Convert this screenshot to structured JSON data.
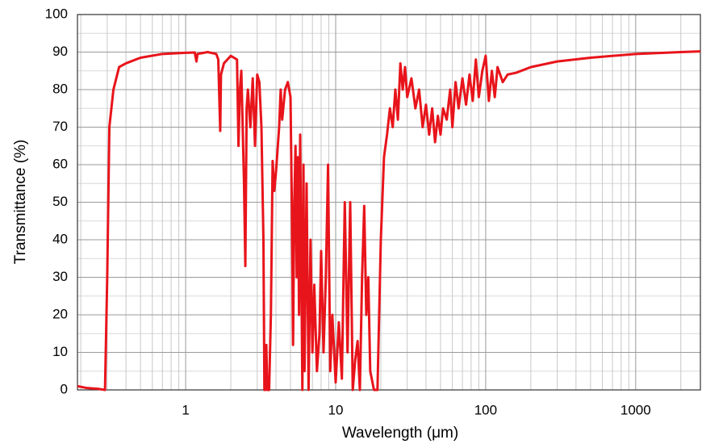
{
  "chart_data": {
    "type": "line",
    "xlabel": "Wavelength (μm)",
    "ylabel": "Transmittance (%)",
    "xscale": "log",
    "xlim": [
      0.19,
      2700
    ],
    "ylim": [
      0,
      100
    ],
    "xticks": [
      1,
      10,
      100,
      1000
    ],
    "xminorticks": [
      0.2,
      0.3,
      0.4,
      0.5,
      0.6,
      0.7,
      0.8,
      0.9,
      2,
      3,
      4,
      5,
      6,
      7,
      8,
      9,
      20,
      30,
      40,
      50,
      60,
      70,
      80,
      90,
      200,
      300,
      400,
      500,
      600,
      700,
      800,
      900,
      2000
    ],
    "yticks": [
      0,
      10,
      20,
      30,
      40,
      50,
      60,
      70,
      80,
      90,
      100
    ],
    "yminorticks": [
      5,
      15,
      25,
      35,
      45,
      55,
      65,
      75,
      85,
      95
    ],
    "grid": true,
    "color": "#e8141b",
    "x": [
      0.19,
      0.22,
      0.26,
      0.29,
      0.3,
      0.31,
      0.33,
      0.36,
      0.4,
      0.5,
      0.7,
      1.0,
      1.15,
      1.18,
      1.2,
      1.4,
      1.6,
      1.65,
      1.7,
      1.72,
      1.8,
      2.0,
      2.2,
      2.25,
      2.3,
      2.35,
      2.4,
      2.45,
      2.5,
      2.55,
      2.6,
      2.7,
      2.8,
      2.9,
      3.0,
      3.1,
      3.2,
      3.3,
      3.35,
      3.4,
      3.45,
      3.5,
      3.6,
      3.7,
      3.8,
      3.9,
      4.0,
      4.2,
      4.3,
      4.4,
      4.6,
      4.8,
      5.0,
      5.1,
      5.2,
      5.3,
      5.4,
      5.5,
      5.6,
      5.7,
      5.8,
      6.0,
      6.1,
      6.2,
      6.4,
      6.6,
      6.8,
      7.0,
      7.2,
      7.5,
      7.8,
      8.0,
      8.3,
      8.6,
      8.9,
      9.2,
      9.5,
      10,
      10.5,
      11,
      11.5,
      12,
      12.5,
      13,
      13.5,
      14,
      14.5,
      15,
      15.5,
      16,
      16.5,
      17,
      18,
      19,
      20,
      21,
      22,
      23,
      24,
      25,
      26,
      27,
      28,
      29,
      30,
      32,
      34,
      36,
      38,
      40,
      42,
      44,
      46,
      48,
      50,
      52,
      55,
      58,
      60,
      63,
      66,
      70,
      74,
      78,
      82,
      86,
      90,
      95,
      100,
      105,
      110,
      115,
      120,
      130,
      140,
      160,
      200,
      300,
      500,
      1000,
      2000,
      2700
    ],
    "values": [
      1,
      0.5,
      0.3,
      0,
      30,
      70,
      80,
      86,
      87,
      88.5,
      89.5,
      89.8,
      89.9,
      87.5,
      89.5,
      90,
      89.5,
      88,
      69,
      84,
      87,
      89,
      88,
      65,
      80,
      85,
      70,
      55,
      33,
      75,
      80,
      70,
      83,
      65,
      84,
      82,
      70,
      40,
      0,
      0,
      12,
      0,
      0,
      20,
      61,
      53,
      58,
      70,
      80,
      72,
      80,
      82,
      78,
      50,
      12,
      50,
      65,
      30,
      62,
      20,
      68,
      0,
      60,
      5,
      55,
      0,
      40,
      10,
      28,
      5,
      15,
      37,
      10,
      30,
      60,
      5,
      20,
      2,
      18,
      3,
      50,
      10,
      50,
      0,
      8,
      13,
      0,
      30,
      49,
      20,
      30,
      5,
      0,
      0,
      40,
      62,
      68,
      75,
      70,
      80,
      72,
      87,
      80,
      86,
      78,
      83,
      75,
      80,
      70,
      76,
      68,
      75,
      66,
      73,
      68,
      75,
      72,
      80,
      70,
      82,
      75,
      83,
      76,
      84,
      77,
      88,
      78,
      85,
      89,
      77,
      85,
      78,
      86,
      82,
      84,
      84.5,
      86,
      87.5,
      88.5,
      89.5,
      90,
      90.2
    ]
  }
}
